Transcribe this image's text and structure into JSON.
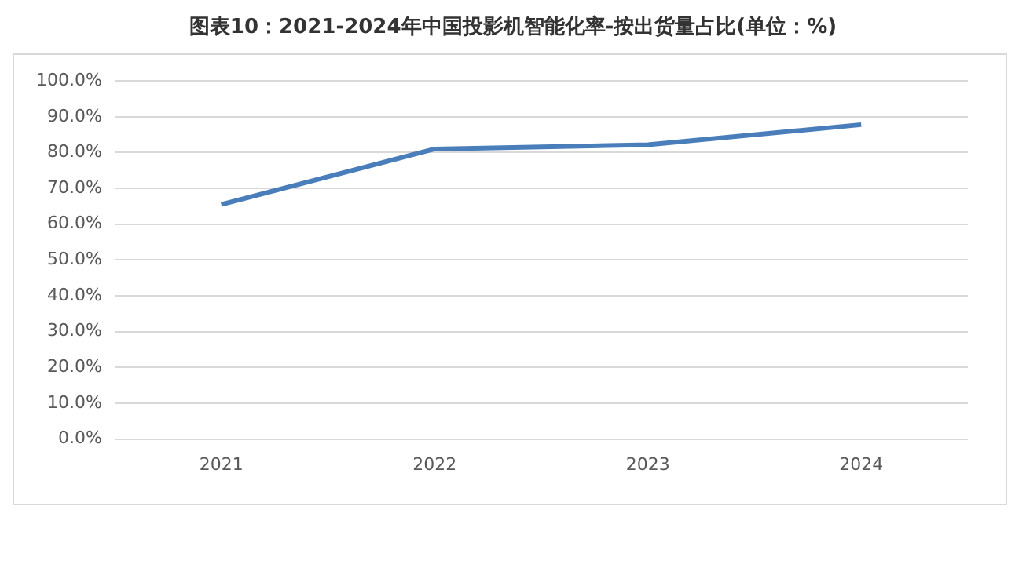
{
  "chart_data": {
    "type": "line",
    "title": "图表10：2021-2024年中国投影机智能化率-按出货量占比(单位：%)",
    "categories": [
      "2021",
      "2022",
      "2023",
      "2024"
    ],
    "series": [
      {
        "color": "#4a7ebb",
        "values": [
          65.5,
          81,
          82.2,
          87.8
        ]
      }
    ],
    "ylim": [
      0,
      100
    ],
    "yticks": [
      {
        "value": 0,
        "label": "0.0%"
      },
      {
        "value": 10,
        "label": "10.0%"
      },
      {
        "value": 20,
        "label": "20.0%"
      },
      {
        "value": 30,
        "label": "30.0%"
      },
      {
        "value": 40,
        "label": "40.0%"
      },
      {
        "value": 50,
        "label": "50.0%"
      },
      {
        "value": 60,
        "label": "60.0%"
      },
      {
        "value": 70,
        "label": "70.0%"
      },
      {
        "value": 80,
        "label": "80.0%"
      },
      {
        "value": 90,
        "label": "90.0%"
      },
      {
        "value": 100,
        "label": "100.0%"
      }
    ],
    "grid": "y",
    "legend": false,
    "marker": "none",
    "line_style": "solid"
  }
}
